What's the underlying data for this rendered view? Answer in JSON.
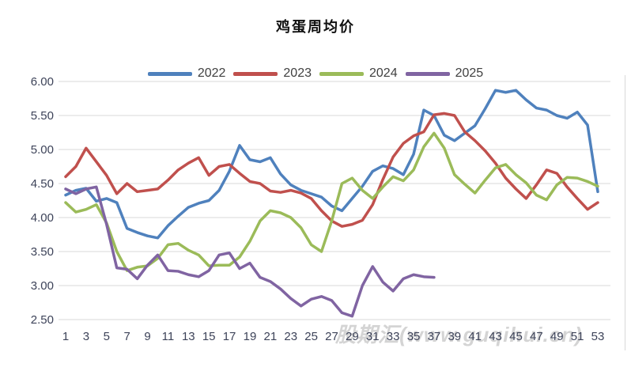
{
  "page": {
    "title": "鸡蛋周均价",
    "watermark": "股期汇(www.guqihui.cn)"
  },
  "chart_data": {
    "type": "line",
    "title": "鸡蛋周均价",
    "xlabel": "",
    "ylabel": "",
    "x": [
      1,
      2,
      3,
      4,
      5,
      6,
      7,
      8,
      9,
      10,
      11,
      12,
      13,
      14,
      15,
      16,
      17,
      18,
      19,
      20,
      21,
      22,
      23,
      24,
      25,
      26,
      27,
      28,
      29,
      30,
      31,
      32,
      33,
      34,
      35,
      36,
      37,
      38,
      39,
      40,
      41,
      42,
      43,
      44,
      45,
      46,
      47,
      48,
      49,
      50,
      51,
      52,
      53
    ],
    "x_tick_labels": [
      "1",
      "3",
      "5",
      "7",
      "9",
      "11",
      "13",
      "15",
      "17",
      "19",
      "21",
      "23",
      "25",
      "27",
      "29",
      "31",
      "33",
      "35",
      "37",
      "39",
      "41",
      "43",
      "45",
      "47",
      "49",
      "51",
      "53"
    ],
    "y_tick_labels": [
      "6.00",
      "5.50",
      "5.00",
      "4.50",
      "4.00",
      "3.50",
      "3.00",
      "2.50"
    ],
    "y_ticks": [
      6.0,
      5.5,
      5.0,
      4.5,
      4.0,
      3.5,
      3.0,
      2.5
    ],
    "ylim": [
      2.5,
      6.0
    ],
    "grid": true,
    "legend_position": "top",
    "grid_color": "#d9d9d9",
    "axis_text_color": "#3d4359",
    "series": [
      {
        "name": "2022",
        "color": "#4F81BD",
        "values": [
          4.33,
          4.4,
          4.43,
          4.24,
          4.28,
          4.22,
          3.84,
          3.78,
          3.73,
          3.7,
          3.88,
          4.02,
          4.15,
          4.21,
          4.25,
          4.4,
          4.68,
          5.06,
          4.85,
          4.82,
          4.88,
          4.64,
          4.48,
          4.4,
          4.35,
          4.3,
          4.17,
          4.1,
          4.28,
          4.46,
          4.68,
          4.76,
          4.72,
          4.63,
          4.93,
          5.58,
          5.5,
          5.21,
          5.13,
          5.24,
          5.35,
          5.6,
          5.87,
          5.84,
          5.87,
          5.73,
          5.61,
          5.58,
          5.5,
          5.46,
          5.55,
          5.36,
          4.38
        ]
      },
      {
        "name": "2023",
        "color": "#C0504D",
        "values": [
          4.6,
          4.75,
          5.02,
          4.82,
          4.62,
          4.35,
          4.5,
          4.38,
          4.4,
          4.42,
          4.55,
          4.7,
          4.8,
          4.88,
          4.62,
          4.75,
          4.78,
          4.65,
          4.53,
          4.5,
          4.39,
          4.37,
          4.4,
          4.36,
          4.28,
          4.1,
          3.95,
          3.87,
          3.9,
          3.96,
          4.19,
          4.56,
          4.89,
          5.09,
          5.2,
          5.26,
          5.51,
          5.53,
          5.5,
          5.26,
          5.13,
          4.98,
          4.8,
          4.58,
          4.42,
          4.28,
          4.48,
          4.7,
          4.65,
          4.45,
          4.28,
          4.12,
          4.22
        ]
      },
      {
        "name": "2024",
        "color": "#9BBB59",
        "values": [
          4.22,
          4.08,
          4.12,
          4.19,
          3.92,
          3.5,
          3.22,
          3.27,
          3.29,
          3.4,
          3.6,
          3.62,
          3.52,
          3.45,
          3.29,
          3.3,
          3.3,
          3.42,
          3.65,
          3.95,
          4.1,
          4.07,
          4.0,
          3.85,
          3.6,
          3.5,
          3.95,
          4.5,
          4.58,
          4.4,
          4.28,
          4.45,
          4.6,
          4.54,
          4.7,
          5.04,
          5.24,
          5.02,
          4.63,
          4.49,
          4.36,
          4.55,
          4.73,
          4.78,
          4.63,
          4.51,
          4.33,
          4.26,
          4.48,
          4.59,
          4.58,
          4.53,
          4.46
        ]
      },
      {
        "name": "2025",
        "color": "#8064A2",
        "values": [
          4.42,
          4.35,
          4.42,
          4.45,
          3.9,
          3.26,
          3.24,
          3.1,
          3.3,
          3.45,
          3.22,
          3.21,
          3.16,
          3.13,
          3.22,
          3.45,
          3.48,
          3.25,
          3.33,
          3.12,
          3.06,
          2.95,
          2.81,
          2.7,
          2.8,
          2.84,
          2.78,
          2.6,
          2.55,
          3.0,
          3.28,
          3.05,
          2.92,
          3.1,
          3.16,
          3.13,
          3.12
        ]
      }
    ]
  }
}
